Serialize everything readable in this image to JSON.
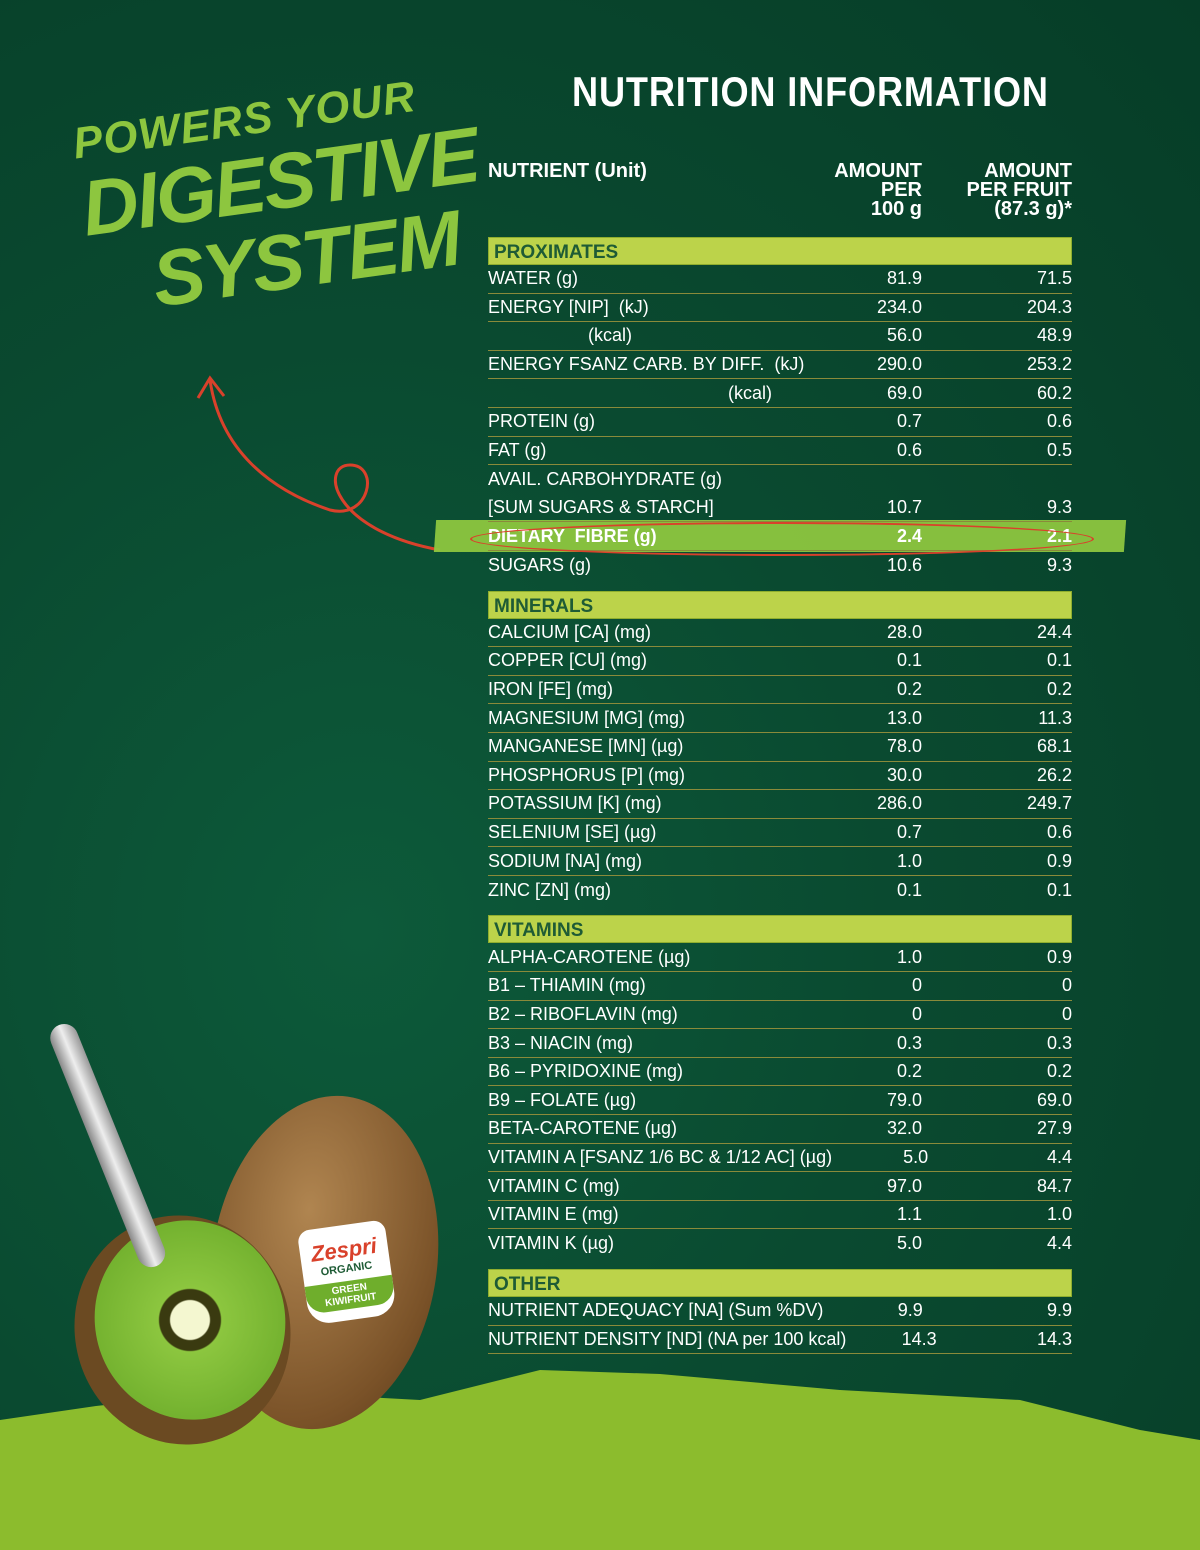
{
  "title": "NUTRITION INFORMATION",
  "slogan": {
    "line1": "POWERS YOUR",
    "line2": "DIGESTIVE",
    "line3": "SYSTEM"
  },
  "header": {
    "nutrient": "NUTRIENT (Unit)",
    "per100": [
      "AMOUNT",
      "PER",
      "100 g"
    ],
    "perFruit": [
      "AMOUNT",
      "PER FRUIT",
      "(87.3 g)*"
    ]
  },
  "label": {
    "brand": "Zespri",
    "type": "ORGANIC",
    "variety": "GREEN",
    "fruit": "KIWIFRUIT"
  },
  "sections": [
    {
      "name": "PROXIMATES",
      "rows": [
        {
          "n": "WATER (g)",
          "a": "81.9",
          "b": "71.5"
        },
        {
          "n": "ENERGY [NIP]  (kJ)",
          "a": "234.0",
          "b": "204.3"
        },
        {
          "n": "                    (kcal)",
          "a": "56.0",
          "b": "48.9"
        },
        {
          "n": "ENERGY FSANZ CARB. BY DIFF.  (kJ)",
          "a": "290.0",
          "b": "253.2"
        },
        {
          "n": "                                                (kcal)",
          "a": "69.0",
          "b": "60.2"
        },
        {
          "n": "PROTEIN (g)",
          "a": "0.7",
          "b": "0.6"
        },
        {
          "n": "FAT (g)",
          "a": "0.6",
          "b": "0.5"
        },
        {
          "n": "AVAIL. CARBOHYDRATE (g)",
          "a": "",
          "b": "",
          "noBorder": true
        },
        {
          "n": "[SUM SUGARS & STARCH]",
          "a": "10.7",
          "b": "9.3"
        },
        {
          "n": "DIETARY  FIBRE (g)",
          "a": "2.4",
          "b": "2.1",
          "highlight": true
        },
        {
          "n": "SUGARS (g)",
          "a": "10.6",
          "b": "9.3",
          "noBorder": true
        }
      ]
    },
    {
      "name": "MINERALS",
      "rows": [
        {
          "n": "CALCIUM [CA] (mg)",
          "a": "28.0",
          "b": "24.4"
        },
        {
          "n": "COPPER [CU] (mg)",
          "a": "0.1",
          "b": "0.1"
        },
        {
          "n": "IRON [FE] (mg)",
          "a": "0.2",
          "b": "0.2"
        },
        {
          "n": "MAGNESIUM [MG] (mg)",
          "a": "13.0",
          "b": "11.3"
        },
        {
          "n": "MANGANESE [MN] (µg)",
          "a": "78.0",
          "b": "68.1"
        },
        {
          "n": "PHOSPHORUS [P] (mg)",
          "a": "30.0",
          "b": "26.2"
        },
        {
          "n": "POTASSIUM [K] (mg)",
          "a": "286.0",
          "b": "249.7"
        },
        {
          "n": "SELENIUM [SE] (µg)",
          "a": "0.7",
          "b": "0.6"
        },
        {
          "n": "SODIUM [NA] (mg)",
          "a": "1.0",
          "b": "0.9"
        },
        {
          "n": "ZINC [ZN] (mg)",
          "a": "0.1",
          "b": "0.1",
          "noBorder": true
        }
      ]
    },
    {
      "name": "VITAMINS",
      "rows": [
        {
          "n": "ALPHA-CAROTENE (µg)",
          "a": "1.0",
          "b": "0.9"
        },
        {
          "n": "B1 – THIAMIN (mg)",
          "a": "0",
          "b": "0"
        },
        {
          "n": "B2 – RIBOFLAVIN (mg)",
          "a": "0",
          "b": "0"
        },
        {
          "n": "B3 – NIACIN (mg)",
          "a": "0.3",
          "b": "0.3"
        },
        {
          "n": "B6 – PYRIDOXINE (mg)",
          "a": "0.2",
          "b": "0.2"
        },
        {
          "n": "B9 – FOLATE (µg)",
          "a": "79.0",
          "b": "69.0"
        },
        {
          "n": "BETA-CAROTENE (µg)",
          "a": "32.0",
          "b": "27.9"
        },
        {
          "n": "VITAMIN A [FSANZ 1/6 BC & 1/12 AC] (µg)",
          "a": "5.0",
          "b": "4.4"
        },
        {
          "n": "VITAMIN C (mg)",
          "a": "97.0",
          "b": "84.7"
        },
        {
          "n": "VITAMIN E (mg)",
          "a": "1.1",
          "b": "1.0"
        },
        {
          "n": "VITAMIN K (µg)",
          "a": "5.0",
          "b": "4.4",
          "noBorder": true
        }
      ]
    },
    {
      "name": "OTHER",
      "rows": [
        {
          "n": "NUTRIENT ADEQUACY [NA] (Sum %DV)",
          "a": "9.9",
          "b": "9.9"
        },
        {
          "n": "NUTRIENT DENSITY [ND] (NA per 100 kcal)",
          "a": "14.3",
          "b": "14.3"
        }
      ]
    }
  ],
  "colors": {
    "background": "#0a4a30",
    "section": "#bcd34a",
    "accent": "#8dc63f",
    "circle": "#d9412b"
  }
}
